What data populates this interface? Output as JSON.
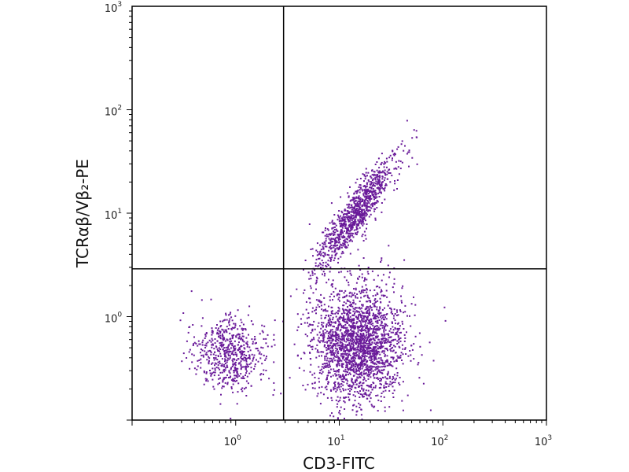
{
  "chart_data": {
    "type": "scatter",
    "title": "",
    "xlabel": "CD3-FITC",
    "ylabel": "TCRαβ/Vβ₂-PE",
    "x_scale": "log",
    "y_scale": "log",
    "xlim": [
      0.1,
      1000
    ],
    "ylim": [
      0.1,
      1000
    ],
    "x_ticks": [
      {
        "base": "10",
        "exp": "0",
        "value": 1
      },
      {
        "base": "10",
        "exp": "1",
        "value": 10
      },
      {
        "base": "10",
        "exp": "2",
        "value": 100
      },
      {
        "base": "10",
        "exp": "3",
        "value": 1000
      }
    ],
    "y_ticks": [
      {
        "base": "10",
        "exp": "0",
        "value": 1
      },
      {
        "base": "10",
        "exp": "1",
        "value": 10
      },
      {
        "base": "10",
        "exp": "2",
        "value": 100
      },
      {
        "base": "10",
        "exp": "3",
        "value": 1000
      }
    ],
    "quadrant_gate": {
      "x": 2.9,
      "y": 2.9
    },
    "grid": false,
    "point_color": "#6a1b9a",
    "populations": [
      {
        "name": "",
        "cx": 0.85,
        "cy": 0.45,
        "sd_log_x": 0.17,
        "sd_log_y": 0.17,
        "count": 600
      },
      {
        "name": "",
        "cx": 15,
        "cy": 0.55,
        "sd_log_x": 0.22,
        "sd_log_y": 0.28,
        "count": 2200
      },
      {
        "name": "",
        "cx": 14,
        "cy": 10,
        "sd_log_x": 0.18,
        "sd_log_y": 0.24,
        "count": 1000
      }
    ]
  }
}
